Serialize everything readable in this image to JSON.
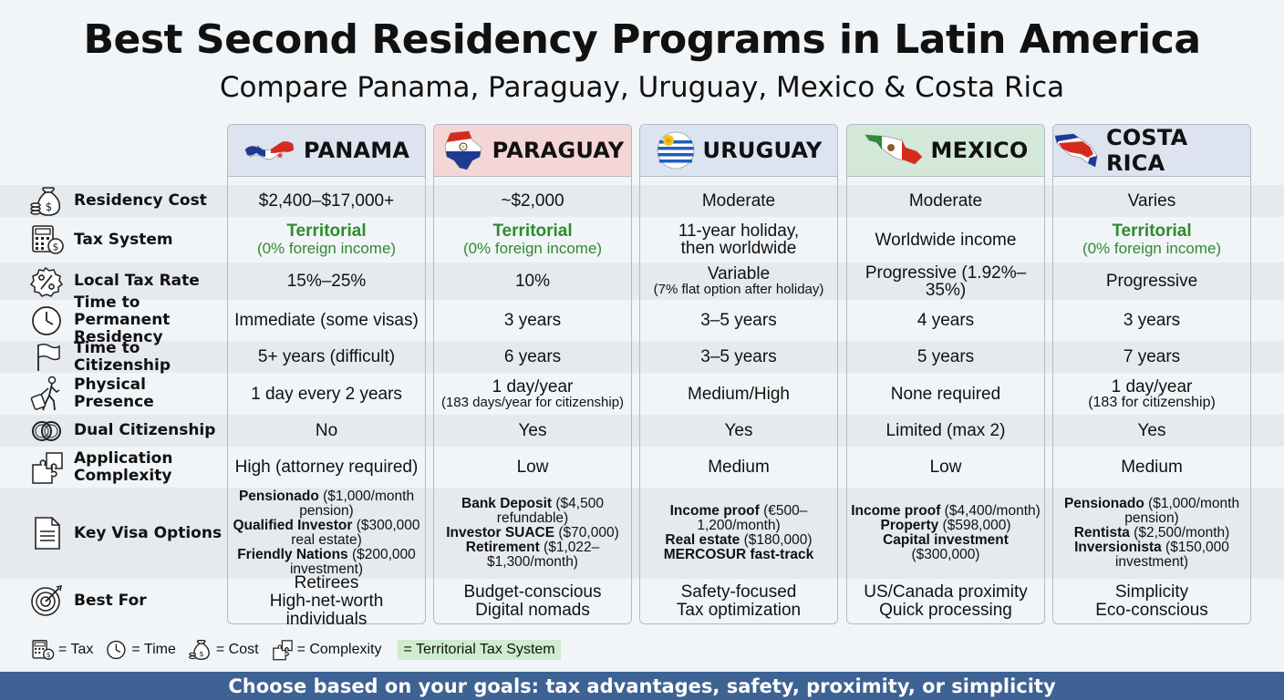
{
  "title": "Best Second Residency Programs in Latin America",
  "subtitle": "Compare Panama, Paraguay, Uruguay, Mexico & Costa Rica",
  "colors": {
    "green_text": "#2e8b2e",
    "territorial_highlight": "#cfeccf",
    "footer_bg": "#3d6293"
  },
  "countries": [
    {
      "name": "PANAMA",
      "icon": "panama-flag-map-icon",
      "header_color": "#dde3ef"
    },
    {
      "name": "PARAGUAY",
      "icon": "paraguay-flag-map-icon",
      "header_color": "#f5d6d6"
    },
    {
      "name": "URUGUAY",
      "icon": "uruguay-flag-icon",
      "header_color": "#dce4f2"
    },
    {
      "name": "MEXICO",
      "icon": "mexico-flag-map-icon",
      "header_color": "#d4e8d9"
    },
    {
      "name": "COSTA RICA",
      "icon": "costa-rica-flag-map-icon",
      "header_color": "#dde3ef"
    }
  ],
  "rows": [
    {
      "label": "Residency Cost",
      "icon": "money-bag-icon"
    },
    {
      "label": "Tax System",
      "icon": "calculator-icon"
    },
    {
      "label": "Local Tax Rate",
      "icon": "percent-badge-icon"
    },
    {
      "label_line1": "Time to Permanent",
      "label_line2": "Residency",
      "icon": "clock-icon"
    },
    {
      "label": "Time to Citizenship",
      "icon": "flag-icon"
    },
    {
      "label": "Physical Presence",
      "icon": "traveler-icon"
    },
    {
      "label": "Dual Citizenship",
      "icon": "interlocking-rings-icon"
    },
    {
      "label_line1": "Application",
      "label_line2": "Complexity",
      "icon": "puzzle-icon"
    },
    {
      "label": "Key Visa Options",
      "icon": "document-icon"
    },
    {
      "label": "Best For",
      "icon": "target-icon"
    }
  ],
  "cells": {
    "residency_cost": [
      "$2,400–$17,000+",
      "~$2,000",
      "Moderate",
      "Moderate",
      "Varies"
    ],
    "tax_system": {
      "territorial_label": "Territorial",
      "territorial_sub": "(0% foreign income)",
      "uruguay_line1": "11-year holiday,",
      "uruguay_line2": "then worldwide",
      "mexico": "Worldwide income"
    },
    "local_tax_rate": {
      "panama": "15%–25%",
      "paraguay": "10%",
      "uruguay_line1": "Variable",
      "uruguay_line2": "(7% flat option after holiday)",
      "mexico": "Progressive (1.92%–35%)",
      "costa_rica": "Progressive"
    },
    "time_to_permanent": [
      "Immediate (some visas)",
      "3 years",
      "3–5 years",
      "4 years",
      "3 years"
    ],
    "time_to_citizenship": [
      "5+ years (difficult)",
      "6 years",
      "3–5 years",
      "5 years",
      "7 years"
    ],
    "physical_presence": {
      "panama": "1 day every 2 years",
      "paraguay_line1": "1 day/year",
      "paraguay_line2": "(183 days/year for citizenship)",
      "uruguay": "Medium/High",
      "mexico": "None required",
      "costa_rica_line1": "1 day/year",
      "costa_rica_line2": "(183 for citizenship)"
    },
    "dual_citizenship": [
      "No",
      "Yes",
      "Yes",
      "Limited (max 2)",
      "Yes"
    ],
    "complexity": [
      "High (attorney required)",
      "Low",
      "Medium",
      "Low",
      "Medium"
    ],
    "visa_options": {
      "panama": [
        {
          "bold": "Pensionado",
          "rest": " ($1,000/month pension)"
        },
        {
          "bold": "Qualified Investor",
          "rest": " ($300,000 real estate)"
        },
        {
          "bold": "Friendly Nations",
          "rest": " ($200,000 investment)"
        }
      ],
      "paraguay": [
        {
          "bold": "Bank Deposit",
          "rest": " ($4,500 refundable)"
        },
        {
          "bold": "Investor SUACE",
          "rest": " ($70,000)"
        },
        {
          "bold": "Retirement",
          "rest": " ($1,022–$1,300/month)"
        }
      ],
      "uruguay": [
        {
          "bold": "Income proof",
          "rest": " (€500–1,200/month)"
        },
        {
          "bold": "Real estate",
          "rest": " ($180,000)"
        },
        {
          "bold": "MERCOSUR fast-track",
          "rest": ""
        }
      ],
      "mexico": [
        {
          "bold": "Income proof",
          "rest": " ($4,400/month)"
        },
        {
          "bold": "Property",
          "rest": " ($598,000)"
        },
        {
          "bold": "Capital investment",
          "rest": " ($300,000)"
        }
      ],
      "costa_rica": [
        {
          "bold": "Pensionado",
          "rest": " ($1,000/month pension)"
        },
        {
          "bold": "Rentista",
          "rest": " ($2,500/month)"
        },
        {
          "bold": "Inversionista",
          "rest": " ($150,000 investment)"
        }
      ]
    },
    "best_for": [
      [
        "Retirees",
        "High-net-worth individuals"
      ],
      [
        "Budget-conscious",
        "Digital nomads"
      ],
      [
        "Safety-focused",
        "Tax optimization"
      ],
      [
        "US/Canada proximity",
        "Quick processing"
      ],
      [
        "Simplicity",
        "Eco-conscious"
      ]
    ]
  },
  "legend": [
    {
      "icon": "calculator-icon",
      "text": "= Tax"
    },
    {
      "icon": "clock-icon",
      "text": "= Time"
    },
    {
      "icon": "money-bag-icon",
      "text": "= Cost"
    },
    {
      "icon": "puzzle-icon",
      "text": "= Complexity"
    }
  ],
  "legend_territorial": "= Territorial Tax System",
  "footer": "Choose based on your goals: tax advantages, safety, proximity, or simplicity"
}
